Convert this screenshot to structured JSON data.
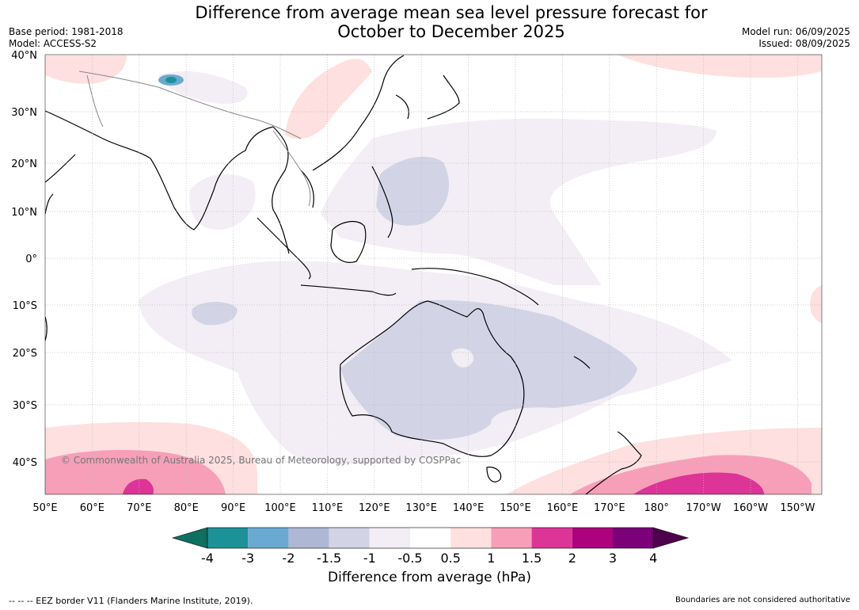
{
  "title_line1": "Difference from average mean sea level pressure forecast for",
  "title_line2": "October to December 2025",
  "base_period": "Base period: 1981-2018",
  "model": "Model: ACCESS-S2",
  "model_run": "Model run: 06/09/2025",
  "issued": "Issued: 08/09/2025",
  "copyright": "© Commonwealth of Australia 2025, Bureau of Meteorology, supported by COSPPac",
  "lat_labels": [
    "40°N",
    "30°N",
    "20°N",
    "10°N",
    "0°",
    "10°S",
    "20°S",
    "30°S",
    "40°S"
  ],
  "lon_labels": [
    "50°E",
    "60°E",
    "70°E",
    "80°E",
    "90°E",
    "100°E",
    "110°E",
    "120°E",
    "130°E",
    "140°E",
    "150°E",
    "160°E",
    "170°E",
    "180°",
    "170°W",
    "160°W",
    "150°W"
  ],
  "colorbar": {
    "ticks": [
      "-4",
      "-3",
      "-2",
      "-1.5",
      "-1",
      "-0.5",
      "0.5",
      "1",
      "1.5",
      "2",
      "3",
      "4"
    ],
    "colors": [
      "#0e7060",
      "#1c9298",
      "#6aaad2",
      "#aeb8d4",
      "#d2d4e6",
      "#f3eef5",
      "#ffffff",
      "#fde0df",
      "#f79fb9",
      "#dd3497",
      "#ae017e",
      "#7a0177",
      "#4d004b"
    ],
    "title": "Difference from average (hPa)"
  },
  "footer_left": "--  --  -- EEZ border V11 (Flanders Marine Institute, 2019).",
  "footer_right": "Boundaries are not considered authoritative"
}
